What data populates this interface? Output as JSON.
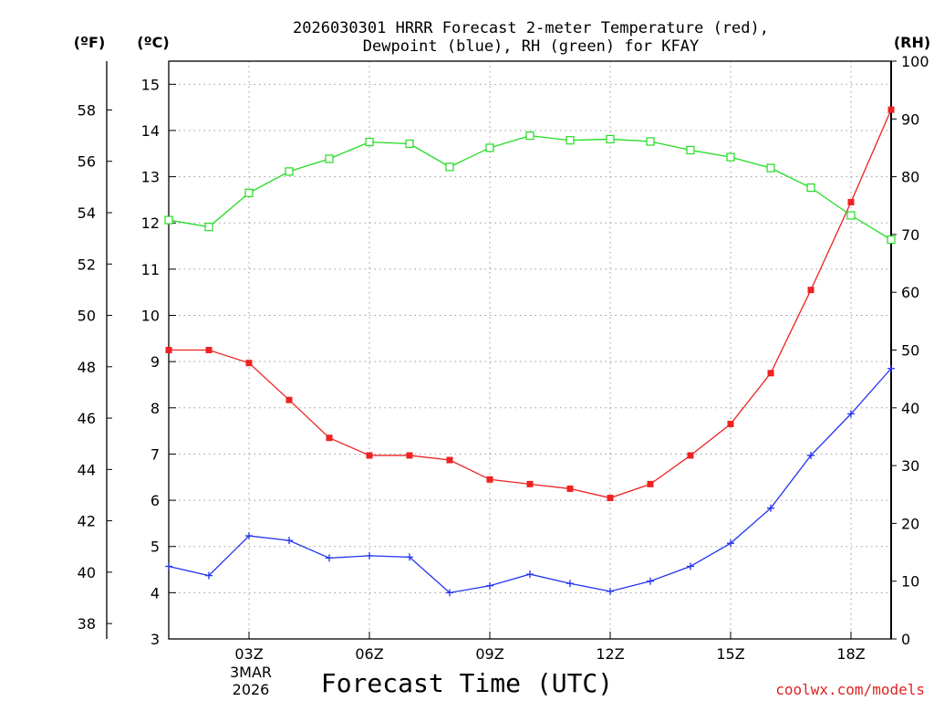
{
  "chart_data": {
    "type": "line",
    "title_line1": "2026030301 HRRR Forecast 2-meter Temperature (red),",
    "title_line2": "Dewpoint (blue), RH (green) for KFAY",
    "xlabel": "Forecast Time (UTC)",
    "left_axis_label": "(ºF)",
    "celsius_axis_label": "(ºC)",
    "right_axis_label": "(RH)",
    "watermark": "coolwx.com/models",
    "date_label_line1": "3MAR",
    "date_label_line2": "2026",
    "x": [
      1,
      2,
      3,
      4,
      5,
      6,
      7,
      8,
      9,
      10,
      11,
      12,
      13,
      14,
      15,
      16,
      17,
      18,
      19
    ],
    "xlim": [
      1,
      19
    ],
    "xticks": [
      {
        "x": 3,
        "label": "03Z"
      },
      {
        "x": 6,
        "label": "06Z"
      },
      {
        "x": 9,
        "label": "09Z"
      },
      {
        "x": 12,
        "label": "12Z"
      },
      {
        "x": 15,
        "label": "15Z"
      },
      {
        "x": 18,
        "label": "18Z"
      }
    ],
    "celsius_lim": [
      3,
      15.5
    ],
    "celsius_ticks": [
      "3",
      "4",
      "5",
      "6",
      "7",
      "8",
      "9",
      "10",
      "11",
      "12",
      "13",
      "14",
      "15"
    ],
    "fahrenheit_ticks": [
      "38",
      "40",
      "42",
      "44",
      "46",
      "48",
      "50",
      "52",
      "54",
      "56",
      "58"
    ],
    "rh_lim": [
      0,
      100
    ],
    "rh_ticks": [
      "0",
      "10",
      "20",
      "30",
      "40",
      "50",
      "60",
      "70",
      "80",
      "90",
      "100"
    ],
    "series": [
      {
        "name": "2-meter Temperature",
        "color": "#ee2222",
        "axis": "celsius",
        "marker": "filled-square",
        "values": [
          9.25,
          9.25,
          8.97,
          8.17,
          7.35,
          6.97,
          6.97,
          6.87,
          6.45,
          6.35,
          6.25,
          6.05,
          6.35,
          6.97,
          7.65,
          8.75,
          10.55,
          12.45,
          14.45
        ]
      },
      {
        "name": "Dewpoint",
        "color": "#2233ee",
        "axis": "celsius",
        "marker": "plus",
        "values": [
          4.57,
          4.37,
          5.23,
          5.13,
          4.75,
          4.8,
          4.77,
          4.0,
          4.15,
          4.4,
          4.2,
          4.03,
          4.25,
          4.57,
          5.07,
          5.83,
          6.97,
          7.87,
          8.85
        ]
      },
      {
        "name": "RH",
        "color": "#22dd22",
        "axis": "rh",
        "marker": "open-square",
        "values": [
          72.5,
          71.3,
          77.2,
          80.9,
          83.1,
          86.0,
          85.7,
          81.7,
          85.0,
          87.1,
          86.3,
          86.5,
          86.1,
          84.6,
          83.4,
          81.5,
          78.1,
          73.3,
          69.1
        ]
      }
    ]
  }
}
